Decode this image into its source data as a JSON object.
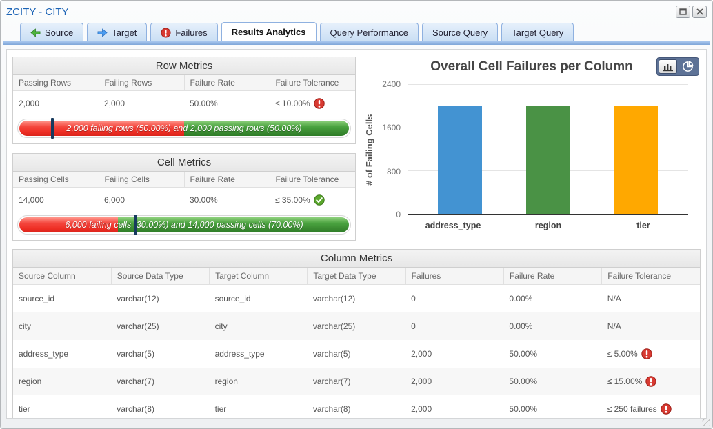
{
  "window": {
    "title": "ZCITY - CITY"
  },
  "tabs": [
    {
      "label": "Source",
      "icon": "arrow-left-green",
      "active": false
    },
    {
      "label": "Target",
      "icon": "arrow-right-blue",
      "active": false
    },
    {
      "label": "Failures",
      "icon": "failure-badge",
      "active": false
    },
    {
      "label": "Results Analytics",
      "icon": null,
      "active": true
    },
    {
      "label": "Query Performance",
      "icon": null,
      "active": false
    },
    {
      "label": "Source Query",
      "icon": null,
      "active": false
    },
    {
      "label": "Target Query",
      "icon": null,
      "active": false
    }
  ],
  "row_metrics": {
    "title": "Row Metrics",
    "headers": [
      "Passing Rows",
      "Failing Rows",
      "Failure Rate",
      "Failure Tolerance"
    ],
    "passing": "2,000",
    "failing": "2,000",
    "failure_rate": "50.00%",
    "tolerance": "≤ 10.00%",
    "tolerance_status": "fail",
    "bar": {
      "text": "2,000 failing rows (50.00%) and 2,000 passing rows (50.00%)",
      "fail_pct": 50,
      "marker_pct": 10
    }
  },
  "cell_metrics": {
    "title": "Cell Metrics",
    "headers": [
      "Passing Cells",
      "Failing Cells",
      "Failure Rate",
      "Failure Tolerance"
    ],
    "passing": "14,000",
    "failing": "6,000",
    "failure_rate": "30.00%",
    "tolerance": "≤ 35.00%",
    "tolerance_status": "pass",
    "bar": {
      "text": "6,000 failing cells (30.00%) and 14,000 passing cells (70.00%)",
      "fail_pct": 30,
      "marker_pct": 35
    }
  },
  "chart_data": {
    "type": "bar",
    "title": "Overall Cell Failures per Column",
    "ylabel": "# of Failing Cells",
    "categories": [
      "address_type",
      "region",
      "tier"
    ],
    "values": [
      2000,
      2000,
      2000
    ],
    "colors": [
      "#4393d2",
      "#4a9245",
      "#ffa800"
    ],
    "ylim": [
      0,
      2400
    ],
    "yticks": [
      "2400",
      "1600",
      "800",
      "0"
    ],
    "grid": true,
    "legend": "none",
    "view_options": [
      "bar",
      "pie"
    ],
    "selected_view": "bar"
  },
  "column_metrics": {
    "title": "Column Metrics",
    "headers": [
      "Source Column",
      "Source Data Type",
      "Target Column",
      "Target Data Type",
      "Failures",
      "Failure Rate",
      "Failure Tolerance"
    ],
    "rows": [
      {
        "source_column": "source_id",
        "source_type": "varchar(12)",
        "target_column": "source_id",
        "target_type": "varchar(12)",
        "failures": "0",
        "failure_rate": "0.00%",
        "tolerance": "N/A",
        "show_icon": false
      },
      {
        "source_column": "city",
        "source_type": "varchar(25)",
        "target_column": "city",
        "target_type": "varchar(25)",
        "failures": "0",
        "failure_rate": "0.00%",
        "tolerance": "N/A",
        "show_icon": false
      },
      {
        "source_column": "address_type",
        "source_type": "varchar(5)",
        "target_column": "address_type",
        "target_type": "varchar(5)",
        "failures": "2,000",
        "failure_rate": "50.00%",
        "tolerance": "≤ 5.00%",
        "show_icon": true
      },
      {
        "source_column": "region",
        "source_type": "varchar(7)",
        "target_column": "region",
        "target_type": "varchar(7)",
        "failures": "2,000",
        "failure_rate": "50.00%",
        "tolerance": "≤ 15.00%",
        "show_icon": true
      },
      {
        "source_column": "tier",
        "source_type": "varchar(8)",
        "target_column": "tier",
        "target_type": "varchar(8)",
        "failures": "2,000",
        "failure_rate": "50.00%",
        "tolerance": "≤ 250 failures",
        "show_icon": true
      }
    ]
  }
}
